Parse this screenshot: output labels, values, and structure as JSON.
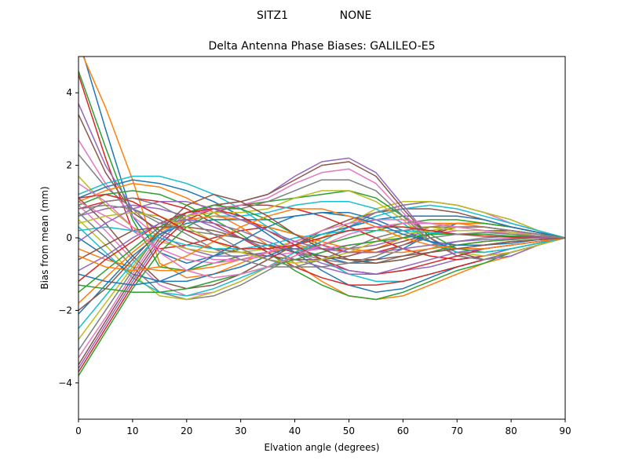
{
  "figure": {
    "suptitle_left": "SITZ1",
    "suptitle_right": "NONE"
  },
  "chart_data": {
    "type": "line",
    "title": "Delta Antenna Phase Biases: GALILEO-E5",
    "xlabel": "Elvation angle (degrees)",
    "ylabel": "Bias from mean (mm)",
    "xlim": [
      0,
      90
    ],
    "ylim": [
      -5,
      5
    ],
    "xticks": [
      0,
      10,
      20,
      30,
      40,
      50,
      60,
      70,
      80,
      90
    ],
    "yticks": [
      -4,
      -2,
      0,
      2,
      4
    ],
    "ytick_labels": [
      "−4",
      "−2",
      "0",
      "2",
      "4"
    ],
    "grid": false,
    "legend": "none",
    "colors": [
      "#1f77b4",
      "#ff7f0e",
      "#2ca02c",
      "#d62728",
      "#9467bd",
      "#8c564b",
      "#e377c2",
      "#7f7f7f",
      "#bcbd22",
      "#17becf"
    ],
    "x": [
      0,
      5,
      10,
      15,
      20,
      25,
      30,
      35,
      40,
      45,
      50,
      55,
      60,
      65,
      70,
      75,
      80,
      85,
      90
    ],
    "series": [
      {
        "values": [
          5.5,
          3.0,
          0.6,
          -0.4,
          -0.7,
          -0.5,
          -0.3,
          -0.2,
          -0.3,
          -0.5,
          -0.7,
          -0.6,
          -0.3,
          0.1,
          0.4,
          0.4,
          0.3,
          0.15,
          0
        ]
      },
      {
        "values": [
          5.3,
          3.6,
          1.6,
          -0.7,
          -1.1,
          -1.0,
          -0.7,
          -0.4,
          -0.2,
          -0.3,
          -0.4,
          -0.3,
          0.0,
          0.3,
          0.4,
          0.4,
          0.3,
          0.15,
          0
        ]
      },
      {
        "values": [
          4.6,
          2.5,
          0.5,
          -0.8,
          -0.9,
          -0.7,
          -0.5,
          -0.4,
          -0.3,
          -0.2,
          0.0,
          0.2,
          0.4,
          0.5,
          0.5,
          0.4,
          0.3,
          0.15,
          0
        ]
      },
      {
        "values": [
          4.5,
          2.2,
          0.2,
          -0.3,
          -0.2,
          0.0,
          0.2,
          0.3,
          0.1,
          -0.2,
          -0.4,
          -0.4,
          -0.2,
          0.1,
          0.3,
          0.3,
          0.2,
          0.1,
          0
        ]
      },
      {
        "values": [
          3.7,
          2.0,
          0.8,
          0.1,
          -0.3,
          -0.5,
          -0.5,
          -0.4,
          -0.3,
          -0.3,
          -0.3,
          -0.2,
          0.0,
          0.2,
          0.3,
          0.3,
          0.2,
          0.1,
          0
        ]
      },
      {
        "values": [
          3.4,
          1.8,
          0.7,
          0.2,
          -0.1,
          -0.3,
          -0.4,
          -0.5,
          -0.6,
          -0.6,
          -0.5,
          -0.3,
          -0.1,
          0.1,
          0.2,
          0.2,
          0.2,
          0.1,
          0
        ]
      },
      {
        "values": [
          2.7,
          1.5,
          0.6,
          0.0,
          -0.4,
          -0.6,
          -0.6,
          -0.5,
          -0.4,
          -0.3,
          -0.2,
          -0.1,
          0.0,
          0.1,
          0.2,
          0.2,
          0.15,
          0.1,
          0
        ]
      },
      {
        "values": [
          2.3,
          1.4,
          0.8,
          0.4,
          0.2,
          0.1,
          0.0,
          -0.2,
          -0.4,
          -0.6,
          -0.7,
          -0.7,
          -0.5,
          -0.3,
          -0.1,
          0.0,
          0.05,
          0.05,
          0
        ]
      },
      {
        "values": [
          1.7,
          0.9,
          0.3,
          -0.1,
          -0.3,
          -0.4,
          -0.4,
          -0.3,
          -0.1,
          0.1,
          0.2,
          0.3,
          0.3,
          0.3,
          0.2,
          0.2,
          0.1,
          0.05,
          0
        ]
      },
      {
        "values": [
          1.2,
          1.5,
          1.7,
          1.7,
          1.5,
          1.2,
          0.8,
          0.3,
          -0.2,
          -0.6,
          -1.0,
          -1.2,
          -1.2,
          -1.0,
          -0.8,
          -0.6,
          -0.4,
          -0.2,
          0
        ]
      },
      {
        "values": [
          1.1,
          1.4,
          1.6,
          1.5,
          1.3,
          1.0,
          0.6,
          0.1,
          -0.4,
          -0.9,
          -1.3,
          -1.5,
          -1.4,
          -1.1,
          -0.8,
          -0.6,
          -0.4,
          -0.2,
          0
        ]
      },
      {
        "values": [
          1.0,
          1.3,
          1.5,
          1.4,
          1.1,
          0.7,
          0.3,
          -0.2,
          -0.7,
          -1.2,
          -1.6,
          -1.7,
          -1.6,
          -1.3,
          -1.0,
          -0.7,
          -0.5,
          -0.2,
          0
        ]
      },
      {
        "values": [
          0.9,
          1.2,
          1.3,
          1.2,
          0.9,
          0.5,
          0.1,
          -0.4,
          -0.9,
          -1.3,
          -1.6,
          -1.7,
          -1.5,
          -1.2,
          -0.9,
          -0.7,
          -0.4,
          -0.2,
          0
        ]
      },
      {
        "values": [
          0.8,
          1.0,
          1.1,
          1.0,
          0.8,
          0.4,
          0.0,
          -0.4,
          -0.8,
          -1.1,
          -1.3,
          -1.3,
          -1.2,
          -1.0,
          -0.8,
          -0.6,
          -0.4,
          -0.2,
          0
        ]
      },
      {
        "values": [
          0.6,
          0.8,
          0.9,
          0.8,
          0.6,
          0.3,
          0.0,
          -0.3,
          -0.6,
          -0.8,
          -1.0,
          -1.0,
          -0.9,
          -0.8,
          -0.6,
          -0.5,
          -0.3,
          -0.15,
          0
        ]
      },
      {
        "values": [
          1.1,
          0.4,
          -0.5,
          -1.2,
          -1.4,
          -1.3,
          -1.0,
          -0.6,
          -0.2,
          0.2,
          0.5,
          0.7,
          0.8,
          0.8,
          0.7,
          0.5,
          0.3,
          0.15,
          0
        ]
      },
      {
        "values": [
          0.9,
          0.2,
          -0.6,
          -1.3,
          -1.6,
          -1.5,
          -1.2,
          -0.8,
          -0.4,
          0.0,
          0.4,
          0.7,
          0.9,
          1.0,
          0.9,
          0.7,
          0.4,
          0.2,
          0
        ]
      },
      {
        "values": [
          0.7,
          0.0,
          -0.8,
          -1.5,
          -1.7,
          -1.6,
          -1.3,
          -0.9,
          -0.5,
          -0.1,
          0.3,
          0.7,
          0.9,
          1.0,
          0.9,
          0.7,
          0.5,
          0.2,
          0
        ]
      },
      {
        "values": [
          0.5,
          -0.2,
          -1.0,
          -1.6,
          -1.7,
          -1.5,
          -1.2,
          -0.8,
          -0.4,
          0.0,
          0.4,
          0.8,
          1.0,
          1.0,
          0.9,
          0.7,
          0.5,
          0.2,
          0
        ]
      },
      {
        "values": [
          0.3,
          -0.4,
          -1.1,
          -1.5,
          -1.6,
          -1.4,
          -1.1,
          -0.8,
          -0.4,
          -0.1,
          0.3,
          0.6,
          0.8,
          0.9,
          0.8,
          0.6,
          0.4,
          0.2,
          0
        ]
      },
      {
        "values": [
          0.0,
          -0.5,
          -1.0,
          -1.2,
          -1.2,
          -1.0,
          -0.8,
          -0.5,
          -0.2,
          0.1,
          0.3,
          0.5,
          0.6,
          0.6,
          0.6,
          0.5,
          0.3,
          0.15,
          0
        ]
      },
      {
        "values": [
          -0.3,
          -0.6,
          -0.8,
          -0.9,
          -0.9,
          -0.8,
          -0.6,
          -0.4,
          -0.2,
          0.0,
          0.2,
          0.3,
          0.4,
          0.4,
          0.4,
          0.3,
          0.2,
          0.1,
          0
        ]
      },
      {
        "values": [
          -3.8,
          -2.6,
          -1.4,
          -0.4,
          0.3,
          0.7,
          0.9,
          1.0,
          1.1,
          1.2,
          1.3,
          1.1,
          0.6,
          0.1,
          -0.3,
          -0.4,
          -0.3,
          -0.15,
          0
        ]
      },
      {
        "values": [
          -3.7,
          -2.5,
          -1.3,
          -0.2,
          0.5,
          0.8,
          0.9,
          0.9,
          0.8,
          0.6,
          0.3,
          0.0,
          -0.3,
          -0.5,
          -0.6,
          -0.5,
          -0.4,
          -0.2,
          0
        ]
      },
      {
        "values": [
          -3.6,
          -2.4,
          -1.2,
          -0.1,
          0.6,
          0.9,
          1.0,
          1.2,
          1.7,
          2.1,
          2.2,
          1.8,
          0.9,
          0.0,
          -0.5,
          -0.6,
          -0.5,
          -0.2,
          0
        ]
      },
      {
        "values": [
          -3.5,
          -2.3,
          -1.1,
          0.0,
          0.7,
          0.9,
          1.0,
          1.2,
          1.6,
          2.0,
          2.1,
          1.7,
          0.8,
          0.0,
          -0.4,
          -0.6,
          -0.4,
          -0.2,
          0
        ]
      },
      {
        "values": [
          -3.3,
          -2.2,
          -1.0,
          0.1,
          0.6,
          0.8,
          0.9,
          1.1,
          1.5,
          1.8,
          1.9,
          1.5,
          0.7,
          -0.1,
          -0.5,
          -0.6,
          -0.4,
          -0.2,
          0
        ]
      },
      {
        "values": [
          -3.1,
          -2.0,
          -0.9,
          0.2,
          0.7,
          0.8,
          0.8,
          1.0,
          1.3,
          1.6,
          1.6,
          1.3,
          0.6,
          -0.1,
          -0.5,
          -0.6,
          -0.4,
          -0.2,
          0
        ]
      },
      {
        "values": [
          -2.8,
          -1.8,
          -0.8,
          0.2,
          0.6,
          0.7,
          0.7,
          0.8,
          1.1,
          1.3,
          1.3,
          1.0,
          0.5,
          -0.1,
          -0.4,
          -0.5,
          -0.4,
          -0.2,
          0
        ]
      },
      {
        "values": [
          -2.5,
          -1.6,
          -0.7,
          0.1,
          0.5,
          0.6,
          0.6,
          0.7,
          0.9,
          1.0,
          1.0,
          0.8,
          0.4,
          -0.1,
          -0.4,
          -0.4,
          -0.3,
          -0.15,
          0
        ]
      },
      {
        "values": [
          -2.1,
          -1.3,
          -0.5,
          0.1,
          0.4,
          0.5,
          0.5,
          0.5,
          0.6,
          0.7,
          0.7,
          0.5,
          0.2,
          -0.1,
          -0.3,
          -0.3,
          -0.2,
          -0.1,
          0
        ]
      },
      {
        "values": [
          -1.8,
          -1.1,
          -0.4,
          0.2,
          0.5,
          0.6,
          0.5,
          0.3,
          0.1,
          -0.1,
          -0.3,
          -0.4,
          -0.4,
          -0.3,
          -0.2,
          -0.1,
          -0.05,
          0,
          0
        ]
      },
      {
        "values": [
          -1.5,
          -0.9,
          -0.3,
          0.3,
          0.7,
          0.9,
          0.8,
          0.5,
          0.1,
          -0.3,
          -0.6,
          -0.7,
          -0.6,
          -0.4,
          -0.2,
          -0.1,
          -0.05,
          0,
          0
        ]
      },
      {
        "values": [
          -1.2,
          -0.6,
          -0.1,
          0.4,
          0.7,
          0.8,
          0.6,
          0.2,
          -0.2,
          -0.6,
          -0.9,
          -1.0,
          -0.9,
          -0.7,
          -0.5,
          -0.3,
          -0.2,
          -0.1,
          0
        ]
      },
      {
        "values": [
          -0.9,
          -0.5,
          0.0,
          0.4,
          0.5,
          0.4,
          0.2,
          -0.1,
          -0.4,
          -0.7,
          -0.9,
          -1.0,
          -0.8,
          -0.6,
          -0.4,
          -0.3,
          -0.2,
          -0.1,
          0
        ]
      },
      {
        "values": [
          -0.6,
          -0.2,
          0.2,
          0.3,
          0.3,
          0.2,
          0.0,
          -0.2,
          -0.4,
          -0.5,
          -0.6,
          -0.6,
          -0.5,
          -0.4,
          -0.3,
          -0.2,
          -0.1,
          -0.05,
          0
        ]
      },
      {
        "values": [
          1.0,
          0.6,
          0.2,
          -0.3,
          -0.6,
          -0.7,
          -0.6,
          -0.4,
          -0.1,
          0.2,
          0.4,
          0.5,
          0.5,
          0.4,
          0.3,
          0.2,
          0.15,
          0.05,
          0
        ]
      },
      {
        "values": [
          0.8,
          0.9,
          0.8,
          0.5,
          0.1,
          -0.3,
          -0.6,
          -0.8,
          -0.8,
          -0.6,
          -0.3,
          0.0,
          0.2,
          0.3,
          0.3,
          0.3,
          0.2,
          0.1,
          0
        ]
      },
      {
        "values": [
          0.4,
          0.6,
          0.7,
          0.6,
          0.3,
          -0.1,
          -0.4,
          -0.6,
          -0.7,
          -0.6,
          -0.4,
          -0.1,
          0.1,
          0.2,
          0.3,
          0.2,
          0.15,
          0.05,
          0
        ]
      },
      {
        "values": [
          0.2,
          0.3,
          0.2,
          0.0,
          -0.2,
          -0.3,
          -0.3,
          -0.2,
          0.0,
          0.1,
          0.2,
          0.2,
          0.2,
          0.15,
          0.1,
          0.1,
          0.05,
          0.02,
          0
        ]
      },
      {
        "values": [
          -1.0,
          -1.2,
          -1.3,
          -1.2,
          -0.9,
          -0.5,
          -0.1,
          0.3,
          0.6,
          0.7,
          0.6,
          0.4,
          0.1,
          -0.1,
          -0.2,
          -0.2,
          -0.15,
          -0.05,
          0
        ]
      },
      {
        "values": [
          -0.5,
          -0.8,
          -0.9,
          -0.8,
          -0.5,
          -0.1,
          0.3,
          0.6,
          0.8,
          0.8,
          0.6,
          0.3,
          0.0,
          -0.2,
          -0.3,
          -0.3,
          -0.2,
          -0.1,
          0
        ]
      },
      {
        "values": [
          -1.3,
          -1.4,
          -1.5,
          -1.5,
          -1.4,
          -1.2,
          -1.0,
          -0.8,
          -0.6,
          -0.4,
          -0.2,
          -0.1,
          0.0,
          0.1,
          0.1,
          0.1,
          0.05,
          0.02,
          0
        ]
      },
      {
        "values": [
          1.1,
          1.2,
          1.0,
          0.6,
          0.2,
          -0.1,
          -0.3,
          -0.3,
          -0.2,
          0.0,
          0.2,
          0.3,
          0.3,
          0.2,
          0.1,
          0.05,
          0.02,
          0.01,
          0
        ]
      },
      {
        "values": [
          -0.1,
          0.4,
          0.8,
          1.0,
          1.0,
          0.8,
          0.5,
          0.2,
          -0.1,
          -0.3,
          -0.4,
          -0.4,
          -0.3,
          -0.2,
          -0.1,
          -0.05,
          -0.02,
          0,
          0
        ]
      },
      {
        "values": [
          -2.0,
          -1.4,
          -0.6,
          0.2,
          0.9,
          1.2,
          1.0,
          0.6,
          0.1,
          -0.3,
          -0.6,
          -0.7,
          -0.6,
          -0.4,
          -0.3,
          -0.2,
          -0.1,
          -0.05,
          0
        ]
      },
      {
        "values": [
          1.5,
          1.0,
          0.3,
          -0.4,
          -0.9,
          -1.1,
          -1.0,
          -0.8,
          -0.5,
          -0.2,
          0.1,
          0.3,
          0.4,
          0.4,
          0.3,
          0.2,
          0.1,
          0.05,
          0
        ]
      },
      {
        "values": [
          0.6,
          1.0,
          1.1,
          0.9,
          0.5,
          0.1,
          -0.3,
          -0.6,
          -0.8,
          -0.8,
          -0.7,
          -0.5,
          -0.2,
          0.0,
          0.1,
          0.15,
          0.1,
          0.05,
          0
        ]
      }
    ]
  }
}
